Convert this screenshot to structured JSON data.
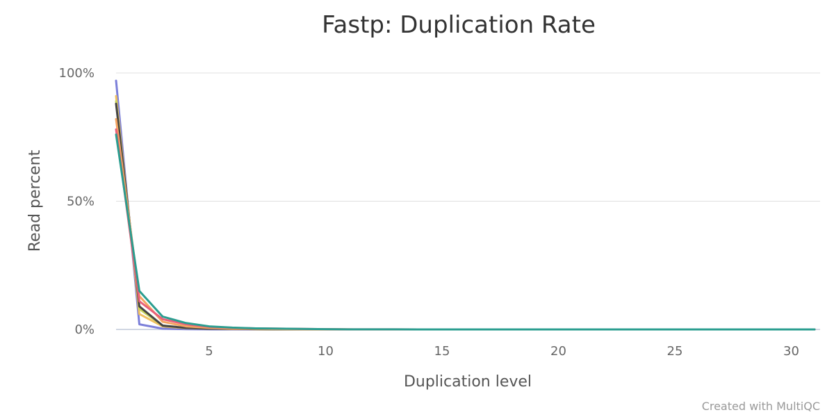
{
  "chart_data": {
    "type": "line",
    "title": "Fastp: Duplication Rate",
    "xlabel": "Duplication level",
    "ylabel": "Read percent",
    "xlim": [
      1,
      31
    ],
    "ylim": [
      0,
      100
    ],
    "x_ticks": [
      5,
      10,
      15,
      20,
      25,
      30
    ],
    "y_ticks": [
      {
        "value": 0,
        "label": "0%"
      },
      {
        "value": 50,
        "label": "50%"
      },
      {
        "value": 100,
        "label": "100%"
      }
    ],
    "grid": true,
    "x": [
      1,
      2,
      3,
      4,
      5,
      6,
      7,
      8,
      9,
      10,
      11,
      12,
      13,
      14,
      15,
      16,
      17,
      18,
      19,
      20,
      21,
      22,
      23,
      24,
      25,
      26,
      27,
      28,
      29,
      30,
      31
    ],
    "series": [
      {
        "color": "#7b7fd9",
        "values": [
          97,
          2,
          0.3,
          0.1,
          0.05,
          0.02,
          0.01,
          0,
          0,
          0,
          0,
          0,
          0,
          0,
          0,
          0,
          0,
          0,
          0,
          0,
          0,
          0,
          0,
          0,
          0,
          0,
          0,
          0,
          0,
          0,
          0
        ]
      },
      {
        "color": "#f0c060",
        "values": [
          91,
          6,
          1.2,
          0.5,
          0.3,
          0.2,
          0.1,
          0.05,
          0.03,
          0.02,
          0,
          0,
          0,
          0,
          0,
          0,
          0,
          0,
          0,
          0,
          0,
          0,
          0,
          0,
          0,
          0,
          0,
          0,
          0,
          0,
          0
        ]
      },
      {
        "color": "#c8d45a",
        "values": [
          89,
          8,
          1.5,
          0.6,
          0.3,
          0.2,
          0.1,
          0.05,
          0.03,
          0.02,
          0,
          0,
          0,
          0,
          0,
          0,
          0,
          0,
          0,
          0,
          0,
          0,
          0,
          0,
          0,
          0,
          0,
          0,
          0,
          0,
          0
        ]
      },
      {
        "color": "#444444",
        "values": [
          88,
          9,
          1.5,
          0.6,
          0.3,
          0.2,
          0.1,
          0.05,
          0.03,
          0.02,
          0,
          0,
          0,
          0,
          0,
          0,
          0,
          0,
          0,
          0,
          0,
          0,
          0,
          0,
          0,
          0,
          0,
          0,
          0,
          0,
          0
        ]
      },
      {
        "color": "#f4a460",
        "values": [
          82,
          13,
          3,
          1.2,
          0.6,
          0.3,
          0.2,
          0.1,
          0.05,
          0.03,
          0.02,
          0,
          0,
          0,
          0,
          0,
          0,
          0,
          0,
          0,
          0,
          0,
          0,
          0,
          0,
          0,
          0,
          0,
          0,
          0,
          0
        ]
      },
      {
        "color": "#e8607a",
        "values": [
          78,
          11,
          4,
          2,
          1,
          0.6,
          0.4,
          0.3,
          0.2,
          0.1,
          0.05,
          0.03,
          0.02,
          0,
          0,
          0,
          0,
          0,
          0,
          0,
          0,
          0,
          0,
          0,
          0,
          0,
          0,
          0,
          0,
          0,
          0
        ]
      },
      {
        "color": "#2a9d8f",
        "values": [
          76,
          15,
          5,
          2.5,
          1.2,
          0.7,
          0.4,
          0.3,
          0.2,
          0.1,
          0.05,
          0.03,
          0.02,
          0,
          0,
          0,
          0,
          0,
          0,
          0,
          0,
          0,
          0,
          0,
          0,
          0,
          0,
          0,
          0,
          0,
          0
        ]
      }
    ]
  },
  "credit": "Created with MultiQC"
}
